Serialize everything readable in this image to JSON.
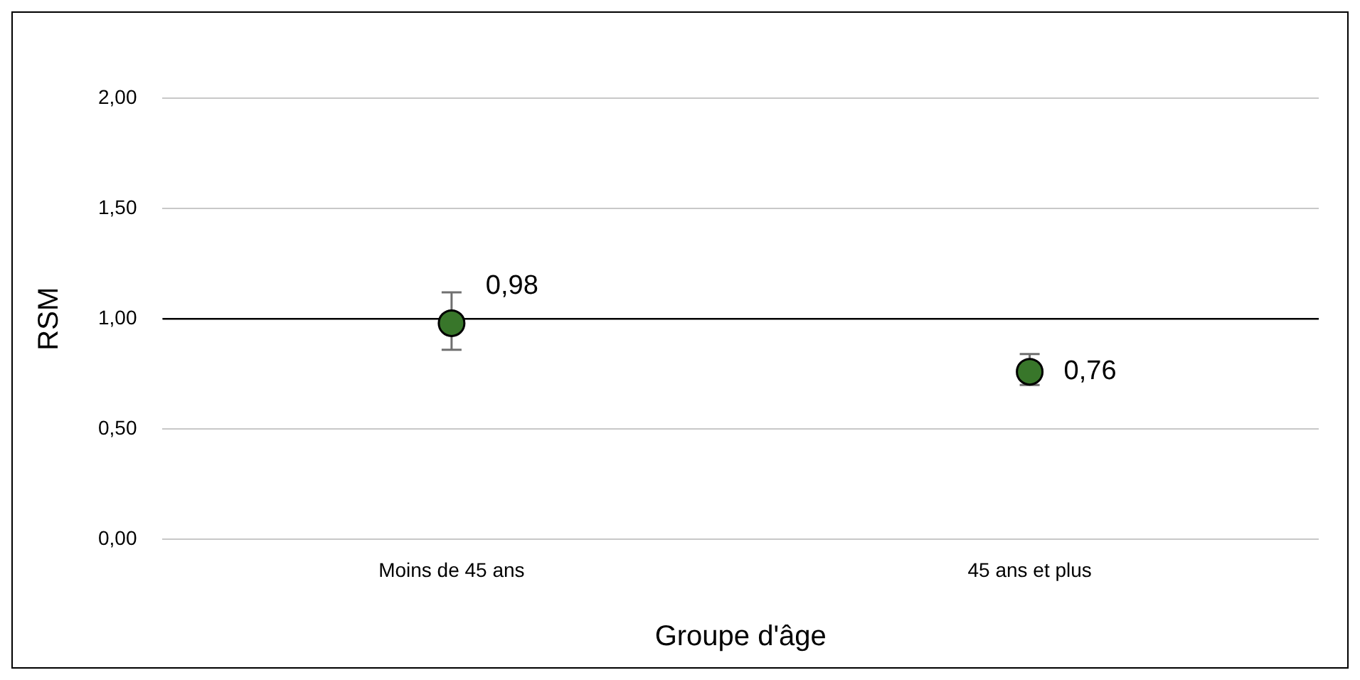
{
  "chart_data": {
    "type": "scatter",
    "xlabel": "Groupe d'âge",
    "ylabel": "RSM",
    "categories": [
      "Moins de 45 ans",
      "45 ans et plus"
    ],
    "values": [
      0.98,
      0.76
    ],
    "color": "#38762a",
    "errors": [
      [
        0.86,
        1.12
      ],
      [
        0.7,
        0.84
      ]
    ],
    "value_labels": [
      "0,98",
      "0,76"
    ],
    "ylim": [
      0,
      2
    ],
    "yticks": [
      {
        "value": 0,
        "label": "0,00"
      },
      {
        "value": 0.5,
        "label": "0,50"
      },
      {
        "value": 1,
        "label": "1,00"
      },
      {
        "value": 1.5,
        "label": "1,50"
      },
      {
        "value": 2,
        "label": "2,00"
      }
    ],
    "ref_lines": [
      {
        "axis": "y",
        "value": 1,
        "color": "#000000"
      }
    ],
    "grid": "y",
    "marker": "circle",
    "legend": false
  }
}
